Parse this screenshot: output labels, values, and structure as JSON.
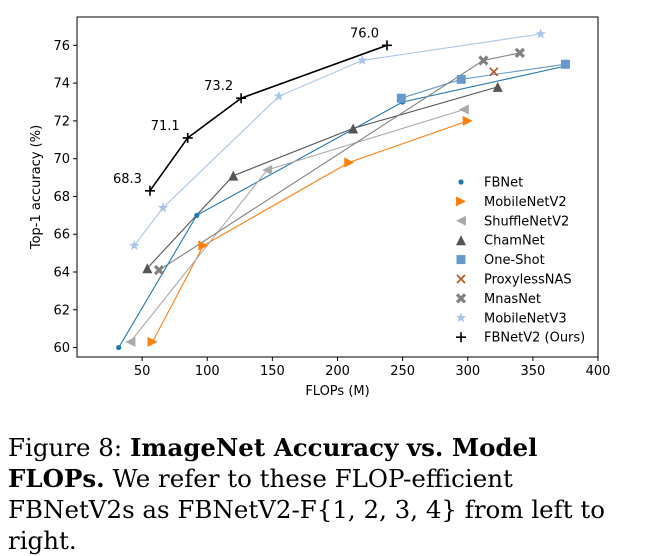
{
  "chart_data": {
    "type": "line",
    "xlabel": "FLOPs (M)",
    "ylabel": "Top-1 accuracy (%)",
    "xlim": [
      0,
      400
    ],
    "ylim": [
      59.5,
      77.5
    ],
    "xticks": [
      50,
      100,
      150,
      200,
      250,
      300,
      350,
      400
    ],
    "yticks": [
      60,
      62,
      64,
      66,
      68,
      70,
      72,
      74,
      76
    ],
    "grid": false,
    "legend_position": "lower-right",
    "series": [
      {
        "name": "FBNet",
        "marker": "dot",
        "color": "#1f77b4",
        "x": [
          32,
          92,
          250,
          375
        ],
        "y": [
          60.0,
          67.0,
          73.0,
          74.9
        ]
      },
      {
        "name": "MobileNetV2",
        "marker": "triangle-right",
        "color": "#ff7f0e",
        "x": [
          58,
          97,
          209,
          300
        ],
        "y": [
          60.3,
          65.4,
          69.8,
          72.0
        ]
      },
      {
        "name": "ShuffleNetV2",
        "marker": "triangle-left",
        "color": "#aaaaaa",
        "x": [
          41,
          146,
          297
        ],
        "y": [
          60.3,
          69.4,
          72.6
        ]
      },
      {
        "name": "ChamNet",
        "marker": "triangle-up",
        "color": "#555555",
        "x": [
          54,
          120,
          212,
          323
        ],
        "y": [
          64.2,
          69.1,
          71.6,
          73.8
        ]
      },
      {
        "name": "One-Shot",
        "marker": "square",
        "color": "#6699cc",
        "x": [
          249,
          295,
          375
        ],
        "y": [
          73.2,
          74.2,
          75.0
        ]
      },
      {
        "name": "ProxylessNAS",
        "marker": "x",
        "color": "#b5531c",
        "x": [
          320
        ],
        "y": [
          74.6
        ]
      },
      {
        "name": "MnasNet",
        "marker": "x-bold",
        "color": "#808080",
        "x": [
          63,
          312,
          340
        ],
        "y": [
          64.1,
          75.2,
          75.6
        ]
      },
      {
        "name": "MobileNetV3",
        "marker": "star",
        "color": "#a9c6e8",
        "x": [
          44,
          66,
          155,
          219,
          356
        ],
        "y": [
          65.4,
          67.4,
          73.3,
          75.2,
          76.6
        ]
      },
      {
        "name": "FBNetV2 (Ours)",
        "marker": "plus",
        "color": "#000000",
        "x": [
          56,
          85,
          126,
          238
        ],
        "y": [
          68.3,
          71.1,
          73.2,
          76.0
        ],
        "labels": [
          "68.3",
          "71.1",
          "73.2",
          "76.0"
        ]
      }
    ]
  },
  "caption": {
    "figure_label": "Figure 8:",
    "title": "ImageNet Accuracy vs. Model FLOPs.",
    "text": "We refer to these FLOP-efficient FBNetV2s as FBNetV2-F{1, 2, 3, 4} from left to right."
  }
}
